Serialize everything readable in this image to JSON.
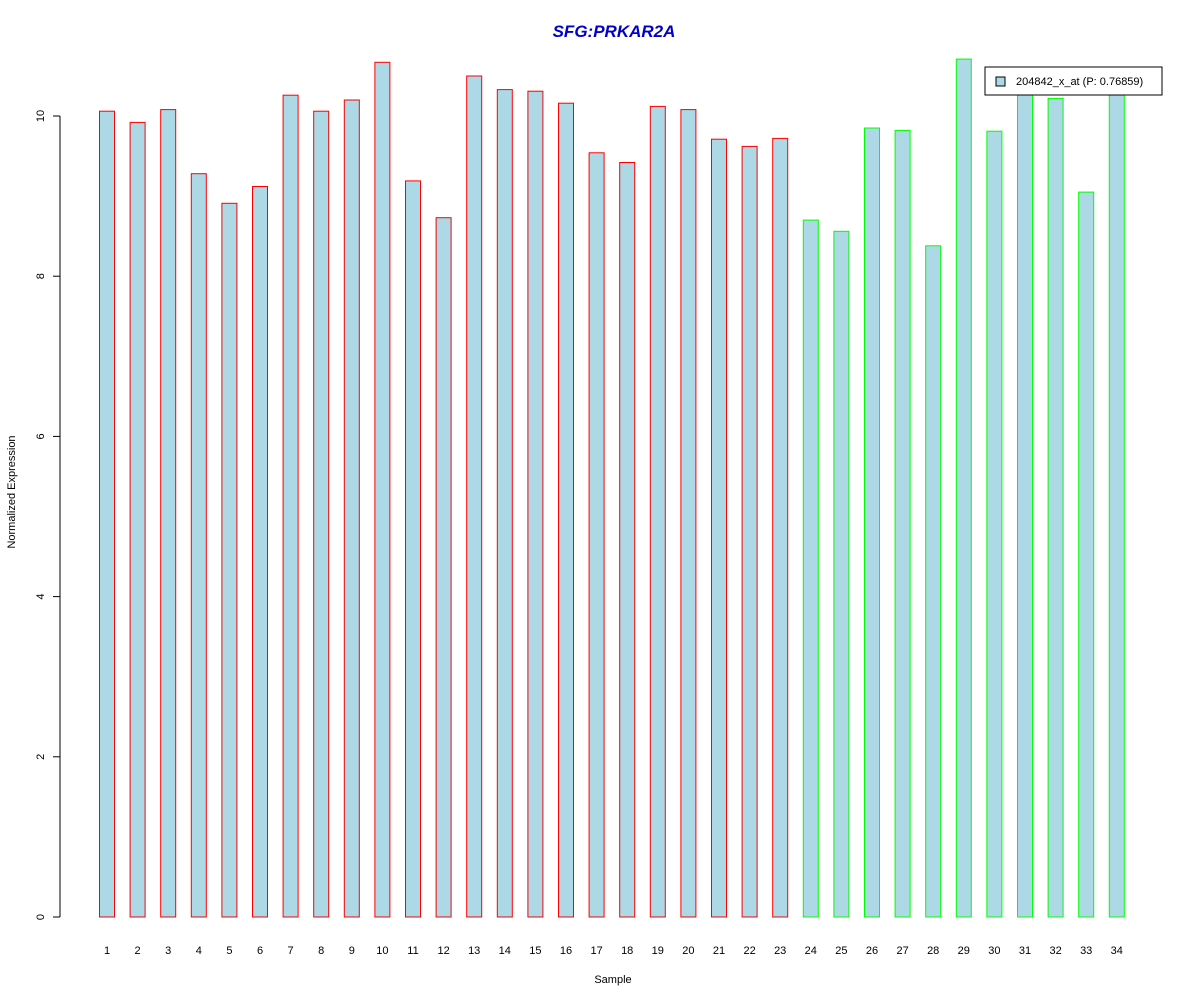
{
  "chart_data": {
    "type": "bar",
    "title": "SFG:PRKAR2A",
    "xlabel": "Sample",
    "ylabel": "Normalized Expression",
    "categories": [
      "1",
      "2",
      "3",
      "4",
      "5",
      "6",
      "7",
      "8",
      "9",
      "10",
      "11",
      "12",
      "13",
      "14",
      "15",
      "16",
      "17",
      "18",
      "19",
      "20",
      "21",
      "22",
      "23",
      "24",
      "25",
      "26",
      "27",
      "28",
      "29",
      "30",
      "31",
      "32",
      "33",
      "34"
    ],
    "series": [
      {
        "name": "204842_x_at (P: 0.76859)",
        "values": [
          10.06,
          9.92,
          10.08,
          9.28,
          8.91,
          9.12,
          10.26,
          10.06,
          10.2,
          10.67,
          9.19,
          8.73,
          10.5,
          10.33,
          10.31,
          10.16,
          9.54,
          9.42,
          10.12,
          10.08,
          9.71,
          9.62,
          9.72,
          8.7,
          8.56,
          9.85,
          9.82,
          8.38,
          10.71,
          9.81,
          10.3,
          10.22,
          9.05,
          10.3
        ]
      }
    ],
    "group_border_colors": [
      "red",
      "red",
      "red",
      "red",
      "red",
      "red",
      "red",
      "red",
      "red",
      "red",
      "red",
      "red",
      "red",
      "red",
      "red",
      "red",
      "red",
      "red",
      "red",
      "red",
      "red",
      "red",
      "red",
      "green",
      "green",
      "green",
      "green",
      "green",
      "green",
      "green",
      "green",
      "green",
      "green",
      "green"
    ],
    "yticks": [
      "0",
      "2",
      "4",
      "6",
      "8",
      "10"
    ],
    "ylim": [
      0,
      10.8
    ],
    "grid": false,
    "legend_position": "top-right",
    "colors": {
      "bar_fill": "#ADD8E6",
      "border_group1": "#FF0000",
      "border_group2": "#00FF00",
      "title": "#0000CC"
    }
  }
}
